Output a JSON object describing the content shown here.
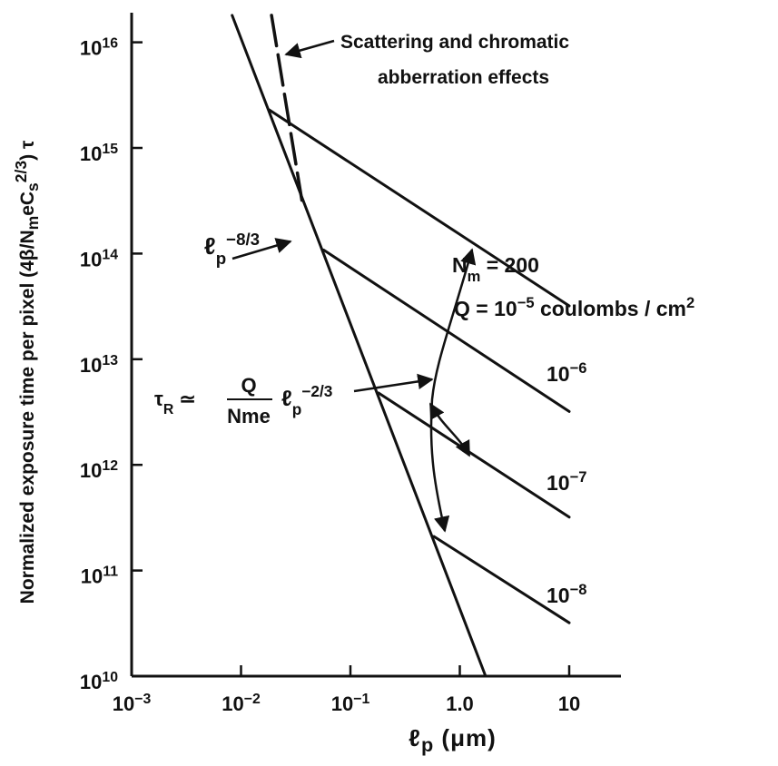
{
  "chart_data": {
    "type": "line",
    "ylabel": "Normalized exposure time per pixel (4β/N_m e C_s^{2/3}) τ",
    "xlabel": "ℓ_p (μm)",
    "xscale": "log",
    "yscale": "log",
    "xlim": [
      0.001,
      50
    ],
    "ylim": [
      10000000000.0,
      2e+16
    ],
    "x_ticks": [
      "10^-3",
      "10^-2",
      "10^-1",
      "1.0",
      "10"
    ],
    "y_ticks": [
      "10^10",
      "10^11",
      "10^12",
      "10^13",
      "10^14",
      "10^15",
      "10^16"
    ],
    "series": [
      {
        "name": "ℓ_p^-8/3",
        "style": "solid",
        "x": [
          0.0083,
          1.72
        ],
        "y": [
          1.8e+16,
          10000000000.0
        ]
      },
      {
        "name": "",
        "style": "dashed",
        "x": [
          0.019,
          0.036
        ],
        "y": [
          1.8e+16,
          320000000000000.0
        ]
      },
      {
        "name": "Q = 10^-5 coulombs/cm^2",
        "style": "solid",
        "x": [
          0.018,
          10
        ],
        "y": [
          2300000000000000.0,
          32000000000000.0
        ]
      },
      {
        "name": "10^-6",
        "style": "solid",
        "x": [
          0.057,
          10
        ],
        "y": [
          108000000000000.0,
          3200000000000.0
        ]
      },
      {
        "name": "10^-7",
        "style": "solid",
        "x": [
          0.18,
          10
        ],
        "y": [
          4800000000000.0,
          320000000000.0
        ]
      },
      {
        "name": "10^-8",
        "style": "solid",
        "x": [
          0.58,
          10
        ],
        "y": [
          210000000000.0,
          32000000000.0
        ]
      }
    ],
    "annotations": {
      "scattering_line1": "Scattering and chromatic",
      "scattering_line2": "abberration effects",
      "nm_label": "N_m = 200",
      "q_label": "Q = 10^-5 coulombs / cm^2",
      "slope_steep": "ℓ_p^-8/3",
      "tau_r_lhs": "τ_R ≃",
      "tau_r_numerator": "Q",
      "tau_r_denominator": "N_me",
      "tau_r_rhs": "ℓ_p^-2/3",
      "label_1e6": "10^-6",
      "label_1e7": "10^-7",
      "label_1e8": "10^-8"
    },
    "grid": false
  }
}
